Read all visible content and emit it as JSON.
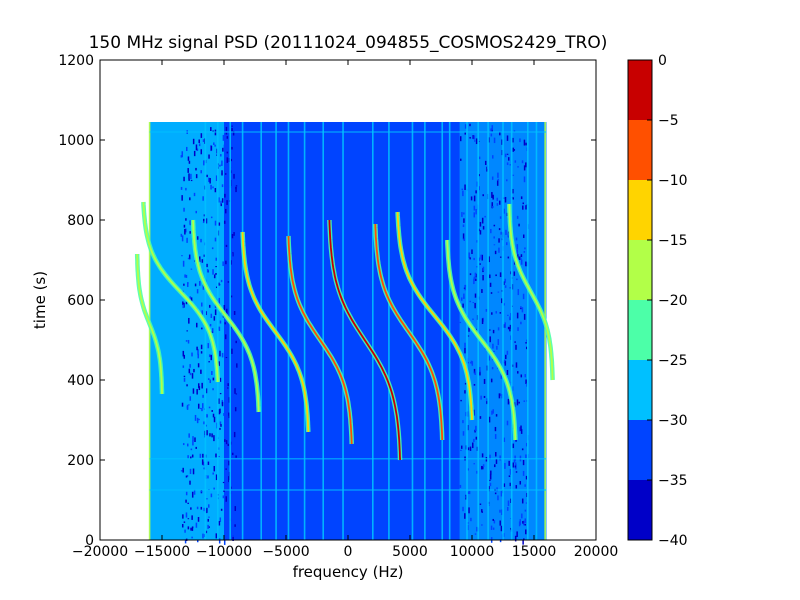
{
  "chart_data": {
    "type": "heatmap",
    "title": "150 MHz signal PSD (20111024_094855_COSMOS2429_TRO)",
    "xlabel": "frequency (Hz)",
    "ylabel": "time (s)",
    "xlim": [
      -20000,
      20000
    ],
    "ylim": [
      0,
      1200
    ],
    "x_ticks": [
      -20000,
      -15000,
      -10000,
      -5000,
      0,
      5000,
      10000,
      15000,
      20000
    ],
    "y_ticks": [
      0,
      200,
      400,
      600,
      800,
      1000,
      1200
    ],
    "data_extent": {
      "x": [
        -16000,
        16000
      ],
      "y": [
        0,
        1045
      ]
    },
    "colormap": "jet",
    "colorbar": {
      "range": [
        -40,
        0
      ],
      "ticks": [
        0,
        -5,
        -10,
        -15,
        -20,
        -25,
        -30,
        -35,
        -40
      ],
      "levels": [
        {
          "from": -40,
          "to": -35,
          "color": "#0000c8"
        },
        {
          "from": -35,
          "to": -30,
          "color": "#0044ff"
        },
        {
          "from": -30,
          "to": -25,
          "color": "#00c0ff"
        },
        {
          "from": -25,
          "to": -20,
          "color": "#4cffa8"
        },
        {
          "from": -20,
          "to": -15,
          "color": "#b2ff48"
        },
        {
          "from": -15,
          "to": -10,
          "color": "#ffd400"
        },
        {
          "from": -10,
          "to": -5,
          "color": "#ff5000"
        },
        {
          "from": -5,
          "to": 0,
          "color": "#c80000"
        }
      ]
    },
    "background_level_color": "#0044ff",
    "edge_band_color": "#00c0ff",
    "vertical_lines_hz": [
      -16000,
      -11500,
      -10500,
      -9500,
      -8500,
      -7000,
      -5800,
      -4800,
      -3500,
      -2000,
      -400,
      2000,
      3300,
      5200,
      6200,
      7600,
      8200,
      9600,
      10500,
      11300,
      12500,
      13200,
      14500,
      15200,
      15900
    ],
    "horizontal_lines_s": [
      125,
      203,
      1020
    ],
    "doppler_tracks": [
      {
        "f_high": -15000,
        "f_low": -17000,
        "t_center": 540,
        "span_s": 350,
        "peak_color": "#b2ff48"
      },
      {
        "f_high": -10500,
        "f_low": -16500,
        "t_center": 620,
        "span_s": 450,
        "peak_color": "#b2ff48"
      },
      {
        "f_high": -7200,
        "f_low": -12500,
        "t_center": 560,
        "span_s": 480,
        "peak_color": "#b2ff48"
      },
      {
        "f_high": -3200,
        "f_low": -8500,
        "t_center": 520,
        "span_s": 500,
        "peak_color": "#ffd400"
      },
      {
        "f_high": 300,
        "f_low": -4800,
        "t_center": 500,
        "span_s": 520,
        "peak_color": "#ff5000"
      },
      {
        "f_high": 4200,
        "f_low": -1500,
        "t_center": 500,
        "span_s": 600,
        "peak_color": "#c80000"
      },
      {
        "f_high": 7600,
        "f_low": 2200,
        "t_center": 520,
        "span_s": 540,
        "peak_color": "#ff5000"
      },
      {
        "f_high": 10000,
        "f_low": 4000,
        "t_center": 560,
        "span_s": 520,
        "peak_color": "#ffd400"
      },
      {
        "f_high": 13500,
        "f_low": 8000,
        "t_center": 500,
        "span_s": 500,
        "peak_color": "#b2ff48"
      },
      {
        "f_high": 16500,
        "f_low": 13000,
        "t_center": 620,
        "span_s": 440,
        "peak_color": "#b2ff48"
      }
    ]
  }
}
